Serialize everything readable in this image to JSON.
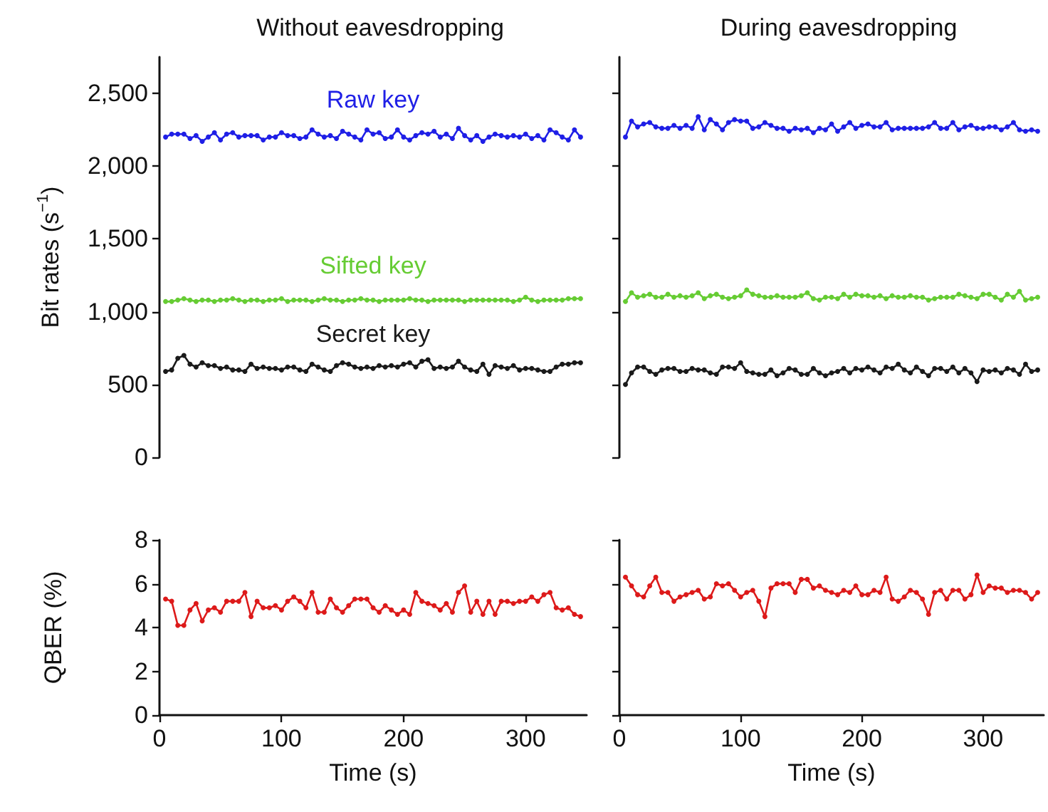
{
  "chart_data": [
    {
      "type": "line",
      "title": "Without eavesdropping",
      "ylabel": "Bit rates (s$^{−1}$)",
      "marker": "circle",
      "line_style": "solid",
      "grid": false,
      "legend": false,
      "tick_labels": "y",
      "x": [
        5,
        10,
        15,
        20,
        25,
        30,
        35,
        40,
        45,
        50,
        55,
        60,
        65,
        70,
        75,
        80,
        85,
        90,
        95,
        100,
        105,
        110,
        115,
        120,
        125,
        130,
        135,
        140,
        145,
        150,
        155,
        160,
        165,
        170,
        175,
        180,
        185,
        190,
        195,
        200,
        205,
        210,
        215,
        220,
        225,
        230,
        235,
        240,
        245,
        250,
        255,
        260,
        265,
        270,
        275,
        280,
        285,
        290,
        295,
        300,
        305,
        310,
        315,
        320,
        325,
        330,
        335,
        340,
        345
      ],
      "ylim": [
        0,
        2750
      ],
      "yticks": [
        0,
        500,
        {
          "value": 1000,
          "label": "1,000"
        },
        {
          "value": 1500,
          "label": "1,500"
        },
        {
          "value": 2000,
          "label": "2,000"
        },
        {
          "value": 2500,
          "label": "2,500"
        }
      ],
      "series": [
        {
          "name": "Raw key",
          "color": "#1f1fe6",
          "values": [
            2200,
            2220,
            2220,
            2220,
            2190,
            2210,
            2170,
            2200,
            2230,
            2180,
            2220,
            2230,
            2200,
            2210,
            2210,
            2210,
            2180,
            2200,
            2200,
            2230,
            2210,
            2210,
            2190,
            2200,
            2250,
            2220,
            2200,
            2210,
            2190,
            2240,
            2220,
            2200,
            2180,
            2250,
            2220,
            2230,
            2190,
            2200,
            2250,
            2200,
            2180,
            2210,
            2230,
            2220,
            2240,
            2200,
            2220,
            2190,
            2260,
            2210,
            2180,
            2210,
            2170,
            2200,
            2220,
            2210,
            2200,
            2210,
            2200,
            2220,
            2190,
            2210,
            2180,
            2250,
            2230,
            2200,
            2180,
            2250,
            2200
          ]
        },
        {
          "name": "Sifted key",
          "color": "#66cc33",
          "values": [
            1070,
            1070,
            1080,
            1090,
            1080,
            1070,
            1080,
            1080,
            1070,
            1080,
            1080,
            1090,
            1080,
            1070,
            1080,
            1080,
            1070,
            1080,
            1080,
            1090,
            1070,
            1080,
            1080,
            1080,
            1070,
            1080,
            1090,
            1080,
            1080,
            1070,
            1080,
            1080,
            1090,
            1080,
            1080,
            1070,
            1080,
            1080,
            1080,
            1080,
            1090,
            1080,
            1080,
            1070,
            1080,
            1080,
            1080,
            1080,
            1080,
            1070,
            1080,
            1080,
            1080,
            1080,
            1080,
            1080,
            1080,
            1070,
            1080,
            1100,
            1080,
            1070,
            1080,
            1080,
            1080,
            1080,
            1090,
            1090,
            1090
          ]
        },
        {
          "name": "Secret key",
          "color": "#1a1a1a",
          "values": [
            590,
            600,
            680,
            700,
            640,
            620,
            650,
            630,
            630,
            610,
            620,
            600,
            600,
            590,
            640,
            610,
            620,
            610,
            610,
            600,
            620,
            620,
            600,
            590,
            640,
            620,
            600,
            590,
            630,
            650,
            640,
            620,
            610,
            620,
            610,
            630,
            620,
            630,
            620,
            640,
            650,
            620,
            660,
            670,
            610,
            620,
            610,
            620,
            660,
            620,
            600,
            590,
            640,
            570,
            630,
            620,
            610,
            630,
            600,
            610,
            610,
            600,
            590,
            590,
            620,
            640,
            640,
            650,
            650
          ]
        }
      ]
    },
    {
      "type": "line",
      "ylabel": "QBER (%)",
      "xlabel": "Time (s)",
      "marker": "circle",
      "line_style": "solid",
      "grid": false,
      "legend": false,
      "x": [
        5,
        10,
        15,
        20,
        25,
        30,
        35,
        40,
        45,
        50,
        55,
        60,
        65,
        70,
        75,
        80,
        85,
        90,
        95,
        100,
        105,
        110,
        115,
        120,
        125,
        130,
        135,
        140,
        145,
        150,
        155,
        160,
        165,
        170,
        175,
        180,
        185,
        190,
        195,
        200,
        205,
        210,
        215,
        220,
        225,
        230,
        235,
        240,
        245,
        250,
        255,
        260,
        265,
        270,
        275,
        280,
        285,
        290,
        295,
        300,
        305,
        310,
        315,
        320,
        325,
        330,
        335,
        340,
        345
      ],
      "xlim": [
        0,
        350
      ],
      "xticks": [
        0,
        100,
        200,
        300
      ],
      "ylim": [
        0,
        8
      ],
      "yticks": [
        0,
        2,
        4,
        6,
        8
      ],
      "series": [
        {
          "color": "#dd1a1a",
          "values": [
            5.3,
            5.2,
            4.1,
            4.1,
            4.8,
            5.1,
            4.3,
            4.8,
            4.9,
            4.7,
            5.2,
            5.2,
            5.2,
            5.6,
            4.5,
            5.2,
            4.9,
            4.9,
            5.0,
            4.8,
            5.2,
            5.4,
            5.2,
            4.9,
            5.6,
            4.7,
            4.7,
            5.3,
            4.9,
            4.7,
            5.0,
            5.3,
            5.3,
            5.3,
            4.9,
            4.7,
            5.0,
            4.8,
            4.6,
            4.8,
            4.6,
            5.6,
            5.2,
            5.1,
            5.0,
            4.8,
            5.1,
            4.7,
            5.6,
            5.9,
            4.7,
            5.2,
            4.6,
            5.2,
            4.6,
            5.2,
            5.2,
            5.1,
            5.2,
            5.2,
            5.4,
            5.2,
            5.5,
            5.6,
            4.9,
            4.8,
            4.9,
            4.6,
            4.5
          ]
        }
      ]
    },
    {
      "type": "line",
      "title": "During eavesdropping",
      "marker": "circle",
      "line_style": "solid",
      "grid": false,
      "legend": false,
      "tick_labels": false,
      "x": [
        5,
        10,
        15,
        20,
        25,
        30,
        35,
        40,
        45,
        50,
        55,
        60,
        65,
        70,
        75,
        80,
        85,
        90,
        95,
        100,
        105,
        110,
        115,
        120,
        125,
        130,
        135,
        140,
        145,
        150,
        155,
        160,
        165,
        170,
        175,
        180,
        185,
        190,
        195,
        200,
        205,
        210,
        215,
        220,
        225,
        230,
        235,
        240,
        245,
        250,
        255,
        260,
        265,
        270,
        275,
        280,
        285,
        290,
        295,
        300,
        305,
        310,
        315,
        320,
        325,
        330,
        335,
        340,
        345
      ],
      "ylim": [
        0,
        2750
      ],
      "yticks": [
        0,
        500,
        1000,
        1500,
        2000,
        2500
      ],
      "series": [
        {
          "color": "#1f1fe6",
          "values": [
            2200,
            2310,
            2270,
            2290,
            2300,
            2270,
            2260,
            2260,
            2280,
            2260,
            2280,
            2260,
            2340,
            2250,
            2320,
            2290,
            2250,
            2300,
            2320,
            2310,
            2310,
            2260,
            2270,
            2300,
            2280,
            2260,
            2260,
            2240,
            2260,
            2250,
            2260,
            2230,
            2260,
            2250,
            2290,
            2240,
            2270,
            2300,
            2260,
            2280,
            2290,
            2270,
            2270,
            2300,
            2250,
            2260,
            2260,
            2260,
            2260,
            2260,
            2270,
            2300,
            2260,
            2260,
            2300,
            2250,
            2270,
            2280,
            2260,
            2260,
            2270,
            2270,
            2250,
            2270,
            2300,
            2250,
            2240,
            2250,
            2240
          ]
        },
        {
          "color": "#66cc33",
          "values": [
            1070,
            1130,
            1100,
            1110,
            1120,
            1100,
            1100,
            1120,
            1100,
            1110,
            1100,
            1110,
            1130,
            1090,
            1110,
            1120,
            1100,
            1090,
            1100,
            1110,
            1150,
            1120,
            1110,
            1100,
            1100,
            1110,
            1100,
            1100,
            1100,
            1110,
            1130,
            1090,
            1080,
            1100,
            1100,
            1090,
            1120,
            1100,
            1120,
            1110,
            1110,
            1100,
            1110,
            1090,
            1110,
            1100,
            1100,
            1110,
            1100,
            1100,
            1080,
            1090,
            1100,
            1100,
            1100,
            1120,
            1110,
            1100,
            1090,
            1120,
            1120,
            1100,
            1080,
            1120,
            1100,
            1140,
            1080,
            1090,
            1100
          ]
        },
        {
          "color": "#1a1a1a",
          "values": [
            500,
            580,
            620,
            620,
            590,
            570,
            600,
            610,
            610,
            590,
            590,
            610,
            600,
            600,
            580,
            570,
            620,
            620,
            610,
            650,
            590,
            580,
            570,
            570,
            600,
            560,
            580,
            610,
            600,
            570,
            570,
            610,
            580,
            560,
            580,
            590,
            610,
            580,
            610,
            600,
            620,
            600,
            580,
            620,
            610,
            640,
            600,
            580,
            620,
            590,
            560,
            610,
            610,
            590,
            620,
            580,
            610,
            580,
            520,
            600,
            590,
            600,
            580,
            610,
            600,
            570,
            640,
            590,
            600
          ]
        }
      ]
    },
    {
      "type": "line",
      "xlabel": "Time (s)",
      "marker": "circle",
      "line_style": "solid",
      "grid": false,
      "legend": false,
      "tick_labels": "x",
      "x": [
        5,
        10,
        15,
        20,
        25,
        30,
        35,
        40,
        45,
        50,
        55,
        60,
        65,
        70,
        75,
        80,
        85,
        90,
        95,
        100,
        105,
        110,
        115,
        120,
        125,
        130,
        135,
        140,
        145,
        150,
        155,
        160,
        165,
        170,
        175,
        180,
        185,
        190,
        195,
        200,
        205,
        210,
        215,
        220,
        225,
        230,
        235,
        240,
        245,
        250,
        255,
        260,
        265,
        270,
        275,
        280,
        285,
        290,
        295,
        300,
        305,
        310,
        315,
        320,
        325,
        330,
        335,
        340,
        345
      ],
      "xlim": [
        0,
        350
      ],
      "xticks": [
        0,
        100,
        200,
        300
      ],
      "ylim": [
        0,
        8
      ],
      "yticks": [
        0,
        2,
        4,
        6,
        8
      ],
      "series": [
        {
          "color": "#dd1a1a",
          "values": [
            6.3,
            5.9,
            5.5,
            5.4,
            5.9,
            6.3,
            5.6,
            5.6,
            5.2,
            5.4,
            5.5,
            5.6,
            5.7,
            5.3,
            5.4,
            6.0,
            5.9,
            6.0,
            5.7,
            5.4,
            5.6,
            5.7,
            5.2,
            4.5,
            5.8,
            6.0,
            6.0,
            6.0,
            5.6,
            6.2,
            6.2,
            5.8,
            5.9,
            5.7,
            5.6,
            5.5,
            5.7,
            5.6,
            5.9,
            5.5,
            5.5,
            5.7,
            5.6,
            6.3,
            5.3,
            5.2,
            5.4,
            5.7,
            5.6,
            5.3,
            4.6,
            5.6,
            5.7,
            5.3,
            5.7,
            5.7,
            5.3,
            5.5,
            6.4,
            5.6,
            5.9,
            5.8,
            5.8,
            5.6,
            5.7,
            5.7,
            5.6,
            5.3,
            5.6
          ]
        }
      ]
    }
  ]
}
